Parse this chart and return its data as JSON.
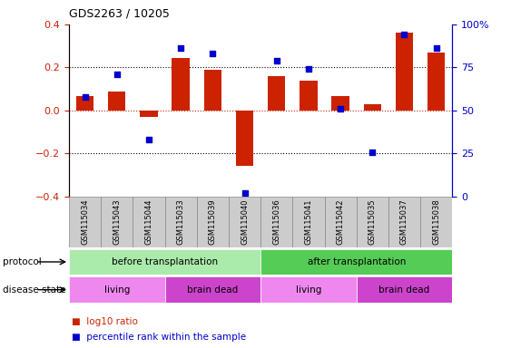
{
  "title": "GDS2263 / 10205",
  "samples": [
    "GSM115034",
    "GSM115043",
    "GSM115044",
    "GSM115033",
    "GSM115039",
    "GSM115040",
    "GSM115036",
    "GSM115041",
    "GSM115042",
    "GSM115035",
    "GSM115037",
    "GSM115038"
  ],
  "log10_ratio": [
    0.065,
    0.09,
    -0.03,
    0.245,
    0.19,
    -0.255,
    0.16,
    0.14,
    0.065,
    0.03,
    0.36,
    0.27
  ],
  "percentile_rank_pct": [
    58,
    71,
    33,
    86,
    83,
    2,
    79,
    74,
    51,
    26,
    94,
    86
  ],
  "ylim": [
    -0.4,
    0.4
  ],
  "y2lim": [
    0,
    100
  ],
  "yticks_left": [
    -0.4,
    -0.2,
    0.0,
    0.2,
    0.4
  ],
  "y2ticks": [
    0,
    25,
    50,
    75,
    100
  ],
  "bar_color": "#cc2200",
  "scatter_color": "#0000cc",
  "protocol_groups": [
    {
      "label": "before transplantation",
      "start": 0,
      "end": 6,
      "color": "#aaeaaa"
    },
    {
      "label": "after transplantation",
      "start": 6,
      "end": 12,
      "color": "#55cc55"
    }
  ],
  "disease_groups": [
    {
      "label": "living",
      "start": 0,
      "end": 3,
      "color": "#ee88ee"
    },
    {
      "label": "brain dead",
      "start": 3,
      "end": 6,
      "color": "#cc44cc"
    },
    {
      "label": "living",
      "start": 6,
      "end": 9,
      "color": "#ee88ee"
    },
    {
      "label": "brain dead",
      "start": 9,
      "end": 12,
      "color": "#cc44cc"
    }
  ]
}
